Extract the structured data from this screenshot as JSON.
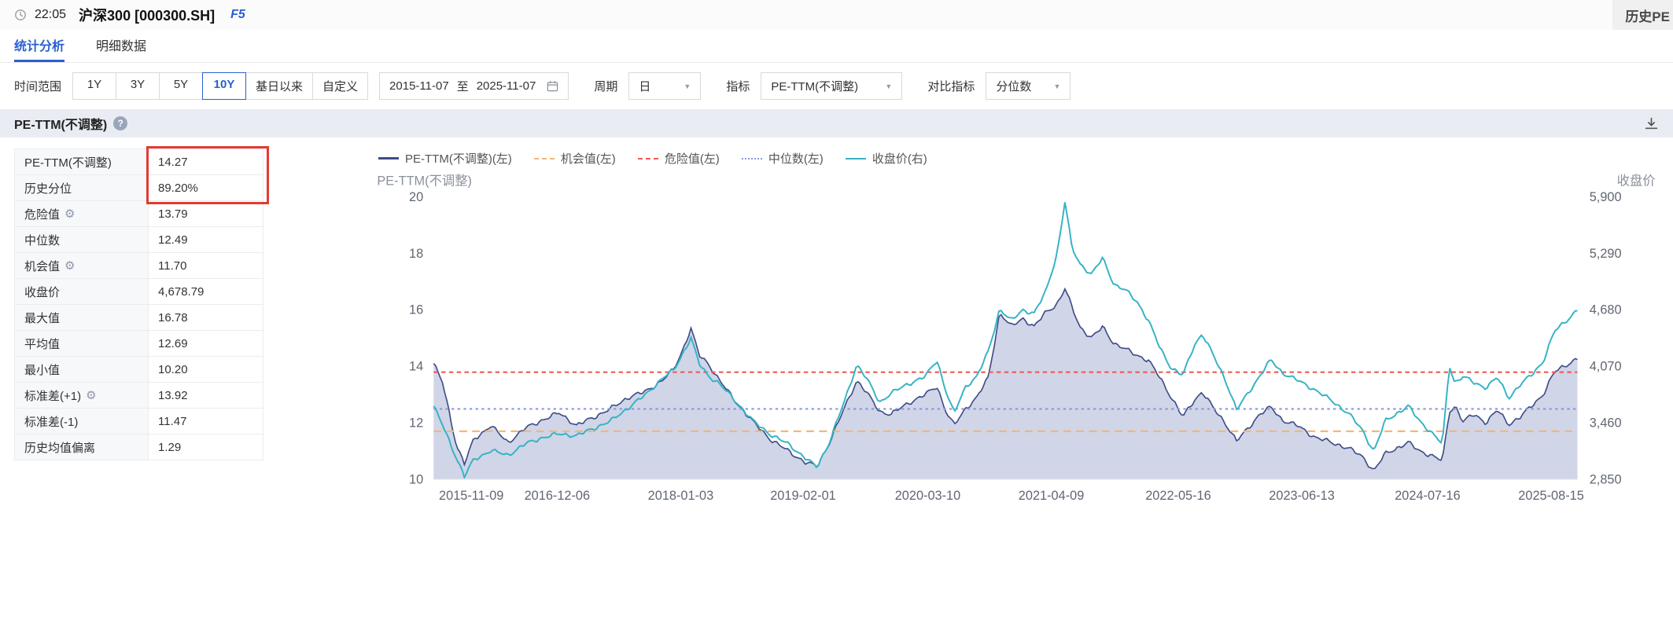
{
  "header": {
    "time": "22:05",
    "title": "沪深300 [000300.SH]",
    "shortcut": "F5",
    "right_label": "历史PE"
  },
  "tabs": [
    {
      "label": "统计分析",
      "active": true
    },
    {
      "label": "明细数据",
      "active": false
    }
  ],
  "filters": {
    "time_range_label": "时间范围",
    "range_buttons": [
      {
        "label": "1Y",
        "active": false
      },
      {
        "label": "3Y",
        "active": false
      },
      {
        "label": "5Y",
        "active": false
      },
      {
        "label": "10Y",
        "active": true
      },
      {
        "label": "基日以来",
        "active": false
      },
      {
        "label": "自定义",
        "active": false
      }
    ],
    "date_start": "2015-11-07",
    "date_separator": "至",
    "date_end": "2025-11-07",
    "period_label": "周期",
    "period_value": "日",
    "indicator_label": "指标",
    "indicator_value": "PE-TTM(不调整)",
    "compare_label": "对比指标",
    "compare_value": "分位数"
  },
  "section": {
    "title": "PE-TTM(不调整)"
  },
  "stats": {
    "rows": [
      {
        "label": "PE-TTM(不调整)",
        "value": "14.27",
        "gear": false
      },
      {
        "label": "历史分位",
        "value": "89.20%",
        "gear": false
      },
      {
        "label": "危险值",
        "value": "13.79",
        "gear": true
      },
      {
        "label": "中位数",
        "value": "12.49",
        "gear": false
      },
      {
        "label": "机会值",
        "value": "11.70",
        "gear": true
      },
      {
        "label": "收盘价",
        "value": "4,678.79",
        "gear": false
      },
      {
        "label": "最大值",
        "value": "16.78",
        "gear": false
      },
      {
        "label": "平均值",
        "value": "12.69",
        "gear": false
      },
      {
        "label": "最小值",
        "value": "10.20",
        "gear": false
      },
      {
        "label": "标准差(+1)",
        "value": "13.92",
        "gear": true
      },
      {
        "label": "标准差(-1)",
        "value": "11.47",
        "gear": false
      },
      {
        "label": "历史均值偏离",
        "value": "1.29",
        "gear": false
      }
    ]
  },
  "chart_data": {
    "type": "line",
    "left_axis": {
      "label": "PE-TTM(不调整)",
      "range": [
        10,
        20
      ],
      "ticks": [
        "20",
        "18",
        "16",
        "14",
        "12",
        "10"
      ]
    },
    "right_axis": {
      "label": "收盘价",
      "range": [
        2850,
        5900
      ],
      "ticks": [
        "5,900",
        "5,290",
        "4,680",
        "4,070",
        "3,460",
        "2,850"
      ]
    },
    "x_ticks": [
      {
        "label": "2015-11-09",
        "t": 0.001
      },
      {
        "label": "2016-12-06",
        "t": 0.108
      },
      {
        "label": "2018-01-03",
        "t": 0.216
      },
      {
        "label": "2019-02-01",
        "t": 0.323
      },
      {
        "label": "2020-03-10",
        "t": 0.432
      },
      {
        "label": "2021-04-09",
        "t": 0.54
      },
      {
        "label": "2022-05-16",
        "t": 0.651
      },
      {
        "label": "2023-06-13",
        "t": 0.759
      },
      {
        "label": "2024-07-16",
        "t": 0.869
      },
      {
        "label": "2025-08-15",
        "t": 0.977
      }
    ],
    "legend": [
      {
        "label": "PE-TTM(不调整)(左)",
        "color": "#3f4c86",
        "style": "solid",
        "thick": 3
      },
      {
        "label": "机会值(左)",
        "color": "#f3b779",
        "style": "dashed",
        "thick": 2
      },
      {
        "label": "危险值(左)",
        "color": "#ef5b56",
        "style": "dashed",
        "thick": 2
      },
      {
        "label": "中位数(左)",
        "color": "#8a97dd",
        "style": "dotted",
        "thick": 2
      },
      {
        "label": "收盘价(右)",
        "color": "#35b3c4",
        "style": "solid",
        "thick": 2
      }
    ],
    "colors": {
      "pe_line": "#3f4c86",
      "pe_fill": "#a9b2d6",
      "close": "#35b3c4",
      "danger": "#ef5b56",
      "opportunity": "#f3b779",
      "median": "#8a97dd"
    },
    "reference_lines": {
      "danger": 13.79,
      "median": 12.49,
      "opportunity": 11.7
    },
    "series": [
      {
        "name": "PE-TTM(不调整)(左)",
        "axis": "left",
        "points": [
          [
            0,
            14.1
          ],
          [
            0.008,
            13.4
          ],
          [
            0.02,
            11.2
          ],
          [
            0.027,
            10.55
          ],
          [
            0.035,
            11.4
          ],
          [
            0.05,
            11.9
          ],
          [
            0.065,
            11.3
          ],
          [
            0.08,
            11.8
          ],
          [
            0.095,
            12.1
          ],
          [
            0.11,
            12.35
          ],
          [
            0.125,
            11.9
          ],
          [
            0.14,
            12.2
          ],
          [
            0.155,
            12.5
          ],
          [
            0.17,
            12.9
          ],
          [
            0.185,
            13.1
          ],
          [
            0.2,
            13.5
          ],
          [
            0.21,
            13.9
          ],
          [
            0.218,
            14.6
          ],
          [
            0.225,
            15.35
          ],
          [
            0.232,
            14.4
          ],
          [
            0.24,
            14.1
          ],
          [
            0.25,
            13.5
          ],
          [
            0.265,
            12.7
          ],
          [
            0.28,
            12.0
          ],
          [
            0.295,
            11.4
          ],
          [
            0.31,
            11.0
          ],
          [
            0.325,
            10.6
          ],
          [
            0.335,
            10.45
          ],
          [
            0.345,
            11.2
          ],
          [
            0.36,
            12.6
          ],
          [
            0.37,
            13.5
          ],
          [
            0.378,
            13.1
          ],
          [
            0.39,
            12.4
          ],
          [
            0.4,
            12.3
          ],
          [
            0.415,
            12.7
          ],
          [
            0.43,
            13.0
          ],
          [
            0.44,
            13.3
          ],
          [
            0.448,
            12.4
          ],
          [
            0.455,
            11.9
          ],
          [
            0.465,
            12.5
          ],
          [
            0.475,
            12.9
          ],
          [
            0.485,
            13.6
          ],
          [
            0.495,
            15.9
          ],
          [
            0.505,
            15.4
          ],
          [
            0.515,
            15.7
          ],
          [
            0.525,
            15.4
          ],
          [
            0.535,
            15.9
          ],
          [
            0.545,
            16.2
          ],
          [
            0.552,
            16.75
          ],
          [
            0.558,
            16.1
          ],
          [
            0.565,
            15.4
          ],
          [
            0.575,
            15.0
          ],
          [
            0.585,
            15.4
          ],
          [
            0.595,
            14.8
          ],
          [
            0.605,
            14.6
          ],
          [
            0.615,
            14.4
          ],
          [
            0.625,
            14.2
          ],
          [
            0.635,
            13.6
          ],
          [
            0.645,
            12.9
          ],
          [
            0.655,
            12.2
          ],
          [
            0.665,
            12.8
          ],
          [
            0.672,
            13.1
          ],
          [
            0.682,
            12.5
          ],
          [
            0.692,
            12.0
          ],
          [
            0.702,
            11.35
          ],
          [
            0.712,
            11.8
          ],
          [
            0.722,
            12.3
          ],
          [
            0.732,
            12.55
          ],
          [
            0.742,
            12.1
          ],
          [
            0.755,
            11.9
          ],
          [
            0.77,
            11.5
          ],
          [
            0.785,
            11.3
          ],
          [
            0.8,
            11.1
          ],
          [
            0.812,
            10.8
          ],
          [
            0.822,
            10.3
          ],
          [
            0.832,
            10.9
          ],
          [
            0.842,
            11.1
          ],
          [
            0.852,
            11.3
          ],
          [
            0.862,
            11.0
          ],
          [
            0.872,
            10.85
          ],
          [
            0.882,
            10.65
          ],
          [
            0.888,
            12.4
          ],
          [
            0.893,
            12.6
          ],
          [
            0.9,
            12.05
          ],
          [
            0.91,
            12.3
          ],
          [
            0.92,
            12.0
          ],
          [
            0.93,
            12.45
          ],
          [
            0.94,
            11.95
          ],
          [
            0.95,
            12.2
          ],
          [
            0.96,
            12.6
          ],
          [
            0.97,
            13.0
          ],
          [
            0.98,
            13.8
          ],
          [
            0.99,
            14.05
          ],
          [
            1,
            14.27
          ]
        ]
      },
      {
        "name": "收盘价(右)",
        "axis": "right",
        "points": [
          [
            0,
            3640
          ],
          [
            0.008,
            3430
          ],
          [
            0.02,
            3080
          ],
          [
            0.027,
            2880
          ],
          [
            0.035,
            3060
          ],
          [
            0.05,
            3160
          ],
          [
            0.065,
            3110
          ],
          [
            0.08,
            3230
          ],
          [
            0.095,
            3300
          ],
          [
            0.11,
            3340
          ],
          [
            0.125,
            3320
          ],
          [
            0.14,
            3400
          ],
          [
            0.155,
            3480
          ],
          [
            0.17,
            3620
          ],
          [
            0.185,
            3760
          ],
          [
            0.2,
            3940
          ],
          [
            0.21,
            4030
          ],
          [
            0.218,
            4210
          ],
          [
            0.225,
            4380
          ],
          [
            0.232,
            4100
          ],
          [
            0.24,
            3970
          ],
          [
            0.25,
            3880
          ],
          [
            0.265,
            3680
          ],
          [
            0.28,
            3470
          ],
          [
            0.295,
            3330
          ],
          [
            0.31,
            3230
          ],
          [
            0.325,
            3080
          ],
          [
            0.335,
            2980
          ],
          [
            0.345,
            3220
          ],
          [
            0.36,
            3720
          ],
          [
            0.37,
            4090
          ],
          [
            0.378,
            3950
          ],
          [
            0.39,
            3680
          ],
          [
            0.4,
            3780
          ],
          [
            0.415,
            3880
          ],
          [
            0.43,
            3960
          ],
          [
            0.44,
            4140
          ],
          [
            0.448,
            3800
          ],
          [
            0.455,
            3560
          ],
          [
            0.465,
            3850
          ],
          [
            0.475,
            3960
          ],
          [
            0.485,
            4230
          ],
          [
            0.495,
            4690
          ],
          [
            0.505,
            4560
          ],
          [
            0.515,
            4680
          ],
          [
            0.525,
            4640
          ],
          [
            0.535,
            4870
          ],
          [
            0.545,
            5280
          ],
          [
            0.552,
            5850
          ],
          [
            0.558,
            5350
          ],
          [
            0.565,
            5180
          ],
          [
            0.575,
            5060
          ],
          [
            0.585,
            5240
          ],
          [
            0.595,
            4950
          ],
          [
            0.605,
            4890
          ],
          [
            0.615,
            4770
          ],
          [
            0.625,
            4560
          ],
          [
            0.635,
            4270
          ],
          [
            0.645,
            4050
          ],
          [
            0.655,
            3970
          ],
          [
            0.665,
            4300
          ],
          [
            0.672,
            4420
          ],
          [
            0.682,
            4180
          ],
          [
            0.692,
            3930
          ],
          [
            0.702,
            3600
          ],
          [
            0.712,
            3780
          ],
          [
            0.722,
            3960
          ],
          [
            0.732,
            4140
          ],
          [
            0.742,
            4000
          ],
          [
            0.755,
            3920
          ],
          [
            0.77,
            3820
          ],
          [
            0.785,
            3700
          ],
          [
            0.8,
            3560
          ],
          [
            0.812,
            3380
          ],
          [
            0.822,
            3150
          ],
          [
            0.832,
            3480
          ],
          [
            0.842,
            3560
          ],
          [
            0.852,
            3640
          ],
          [
            0.862,
            3480
          ],
          [
            0.872,
            3360
          ],
          [
            0.882,
            3230
          ],
          [
            0.888,
            4080
          ],
          [
            0.893,
            3890
          ],
          [
            0.9,
            3960
          ],
          [
            0.91,
            3890
          ],
          [
            0.92,
            3840
          ],
          [
            0.93,
            3950
          ],
          [
            0.94,
            3730
          ],
          [
            0.95,
            3870
          ],
          [
            0.96,
            3980
          ],
          [
            0.97,
            4120
          ],
          [
            0.98,
            4450
          ],
          [
            0.99,
            4560
          ],
          [
            1,
            4679
          ]
        ]
      }
    ]
  }
}
